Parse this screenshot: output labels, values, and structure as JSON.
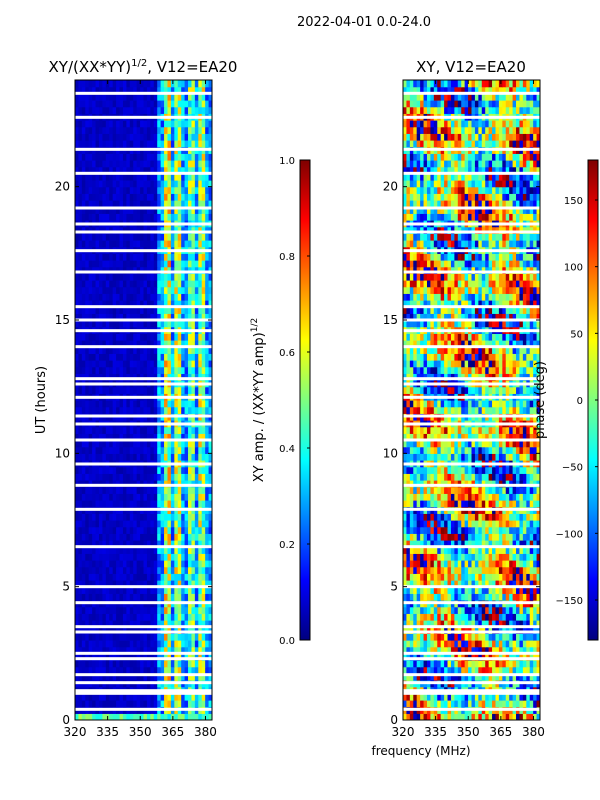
{
  "figure": {
    "suptitle": "2022-04-01 0.0-24.0",
    "xlabel": "frequency (MHz)"
  },
  "colors": {
    "jet_stops": [
      "#00007f",
      "#0000ff",
      "#007fff",
      "#00ffff",
      "#7fff7f",
      "#ffff00",
      "#ff7f00",
      "#ff0000",
      "#7f0000"
    ]
  },
  "chart_data": [
    {
      "type": "heatmap",
      "title": "XY/(XX*YY)",
      "title_exp": "1/2",
      "title_suffix": ", V12=EA20",
      "xlabel": "",
      "ylabel": "UT (hours)",
      "xlim": [
        320,
        383
      ],
      "ylim": [
        0,
        24
      ],
      "xticks": [
        320,
        335,
        350,
        365,
        380
      ],
      "xtick_labels": [
        "320",
        "335",
        "350",
        "365",
        "380"
      ],
      "yticks": [
        0,
        5,
        10,
        15,
        20
      ],
      "ytick_labels": [
        "0",
        "5",
        "10",
        "15",
        "20"
      ],
      "colorbar": {
        "label_main": "XY amp. / (XX*YY amp)",
        "label_exp": "1/2",
        "range": [
          0.0,
          1.0
        ],
        "ticks": [
          0.0,
          0.2,
          0.4,
          0.6,
          0.8,
          1.0
        ],
        "tick_labels": [
          "0.0",
          "0.2",
          "0.4",
          "0.6",
          "0.8",
          "1.0"
        ]
      },
      "flagged_gaps_hours": [
        0.4,
        1.0,
        1.1,
        1.4,
        1.7,
        2.3,
        2.5,
        3.3,
        3.5,
        4.4,
        5.0,
        6.5,
        7.9,
        8.8,
        9.6,
        10.5,
        11.1,
        11.4,
        12.1,
        12.6,
        12.8,
        14.0,
        14.6,
        15.0,
        15.5,
        16.8,
        17.6,
        18.3,
        18.6,
        19.2,
        20.5,
        21.4,
        22.6,
        23.5
      ],
      "bands": [
        {
          "name": "low-coherence region",
          "freq_range": [
            320,
            360
          ],
          "level": 0.05
        },
        {
          "name": "bright channel",
          "freq_range": [
            361,
            364
          ],
          "level": 0.6
        },
        {
          "name": "bright channel",
          "freq_range": [
            366,
            369
          ],
          "level": 0.55
        },
        {
          "name": "bright channel",
          "freq_range": [
            372,
            375
          ],
          "level": 0.5
        },
        {
          "name": "bright channel",
          "freq_range": [
            377,
            380
          ],
          "level": 0.55
        }
      ]
    },
    {
      "type": "heatmap",
      "title": "XY, V12=EA20",
      "xlabel": "",
      "ylabel": "",
      "xlim": [
        320,
        383
      ],
      "ylim": [
        0,
        24
      ],
      "xticks": [
        320,
        335,
        350,
        365,
        380
      ],
      "xtick_labels": [
        "320",
        "335",
        "350",
        "365",
        "380"
      ],
      "yticks": [
        0,
        5,
        10,
        15,
        20
      ],
      "ytick_labels": [
        "0",
        "5",
        "10",
        "15",
        "20"
      ],
      "colorbar": {
        "label_main": "phase (deg)",
        "range": [
          -180,
          180
        ],
        "ticks": [
          -150,
          -100,
          -50,
          0,
          50,
          100,
          150
        ],
        "tick_labels": [
          "−150",
          "−100",
          "−50",
          "0",
          "50",
          "100",
          "150"
        ]
      },
      "flagged_gaps_hours": [
        0.4,
        1.0,
        1.1,
        1.4,
        1.7,
        2.3,
        2.5,
        3.3,
        3.5,
        4.4,
        5.0,
        6.5,
        7.9,
        8.8,
        9.6,
        10.5,
        11.1,
        11.4,
        12.1,
        12.6,
        12.8,
        14.0,
        14.6,
        15.0,
        15.5,
        16.8,
        17.6,
        18.3,
        18.6,
        19.2,
        20.5,
        21.4,
        22.6,
        23.5
      ]
    }
  ]
}
